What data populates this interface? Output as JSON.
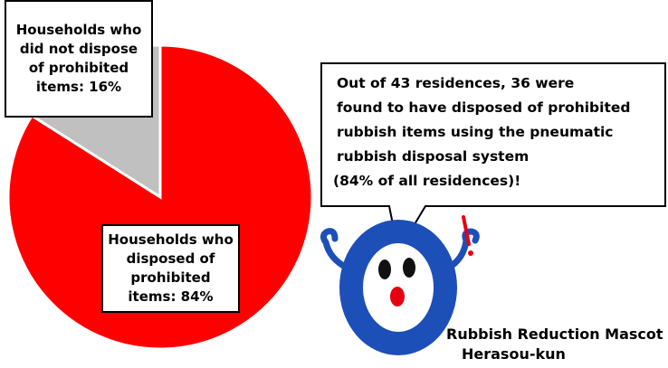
{
  "chart_data": {
    "type": "pie",
    "categories": [
      "Households who did not dispose of prohibited items: 16%",
      "Households who disposed of prohibited items: 84%"
    ],
    "values": [
      16,
      84
    ],
    "colors": [
      "#c0c0c0",
      "#ff0000"
    ],
    "annotation": [
      "Out of 43 residences, 36 were",
      "found to have disposed of prohibited",
      "rubbish items using the pneumatic",
      "rubbish disposal system",
      "(84% of all residences)!"
    ],
    "caption": [
      "Rubbish Reduction Mascot",
      "Herasou-kun"
    ]
  }
}
